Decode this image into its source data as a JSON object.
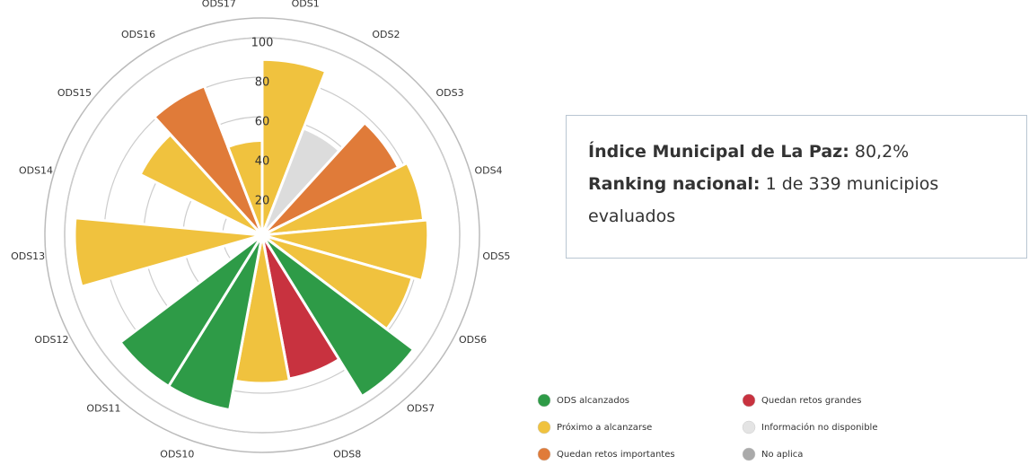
{
  "chart_data": {
    "type": "polar_bar",
    "categories": [
      "ODS1",
      "ODS2",
      "ODS3",
      "ODS4",
      "ODS5",
      "ODS6",
      "ODS7",
      "ODS8",
      "ODS9",
      "ODS10",
      "ODS11",
      "ODS12",
      "ODS13",
      "ODS14",
      "ODS15",
      "ODS16",
      "ODS17"
    ],
    "values": [
      89,
      58,
      77,
      82,
      84,
      79,
      96,
      74,
      75,
      90,
      90,
      null,
      95,
      null,
      69,
      81,
      48
    ],
    "colors": [
      "#f0c23e",
      "#dcdcdc",
      "#e07b39",
      "#f0c23e",
      "#f0c23e",
      "#f0c23e",
      "#2e9b47",
      "#c8323f",
      "#f0c23e",
      "#2e9b47",
      "#2e9b47",
      "#ffffff",
      "#f0c23e",
      "#ffffff",
      "#f0c23e",
      "#e07b39",
      "#f0c23e"
    ],
    "ylim": [
      0,
      100
    ],
    "yticks": [
      20,
      40,
      60,
      80,
      100
    ],
    "grid": true,
    "legend": [
      {
        "name": "ODS alcanzados",
        "color": "#2e9b47"
      },
      {
        "name": "Próximo a alcanzarse",
        "color": "#f0c23e"
      },
      {
        "name": "Quedan retos importantes",
        "color": "#e07b39"
      },
      {
        "name": "Quedan retos grandes",
        "color": "#c8323f"
      },
      {
        "name": "Información no disponible",
        "color": "#e4e4e4"
      },
      {
        "name": "No aplica",
        "color": "#aaaaaa"
      }
    ]
  },
  "info_box": {
    "index_label": "Índice Municipal de La Paz:",
    "index_value": "80,2%",
    "ranking_label": "Ranking nacional:",
    "ranking_value": "1 de 339 municipios",
    "ranking_suffix": "evaluados"
  }
}
